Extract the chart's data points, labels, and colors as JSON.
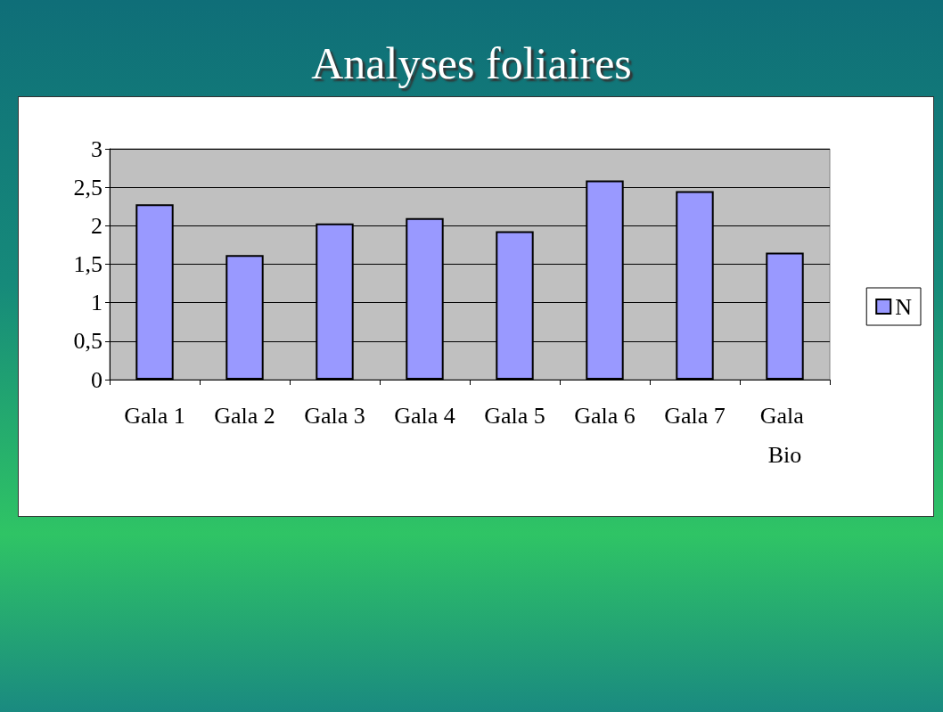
{
  "chart_data": {
    "type": "bar",
    "title": "Analyses foliaires",
    "categories": [
      "Gala 1",
      "Gala 2",
      "Gala 3",
      "Gala 4",
      "Gala 5",
      "Gala 6",
      "Gala 7",
      "Gala Bio"
    ],
    "series": [
      {
        "name": "N",
        "color": "#9999ff",
        "values": [
          2.28,
          1.62,
          2.03,
          2.1,
          1.93,
          2.59,
          2.45,
          1.65
        ]
      }
    ],
    "ylim": [
      0,
      3
    ],
    "yticks": [
      0,
      {
        "value": 0.5,
        "label": "0,5"
      },
      1,
      {
        "value": 1.5,
        "label": "1,5"
      },
      2,
      {
        "value": 2.5,
        "label": "2,5"
      },
      3
    ],
    "grid": "y",
    "legend": "right"
  }
}
